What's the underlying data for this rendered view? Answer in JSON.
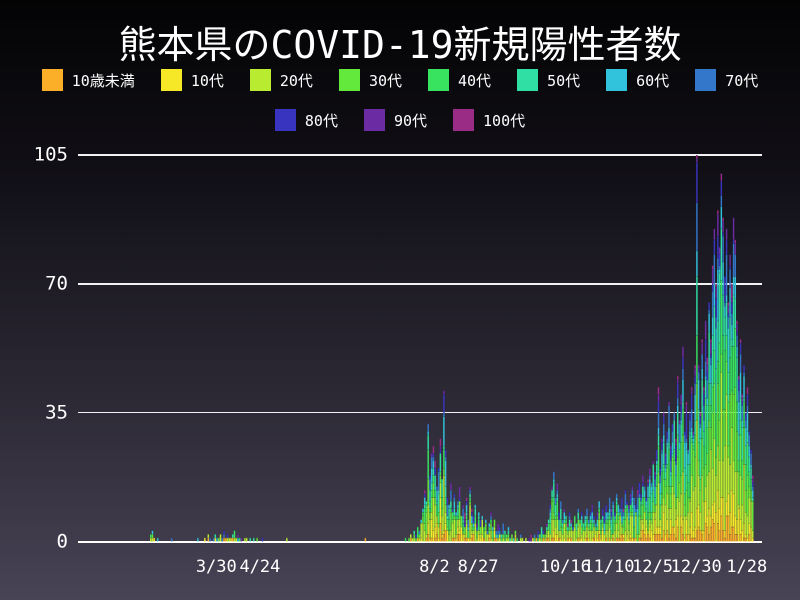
{
  "title": "熊本県のCOVID-19新規陽性者数",
  "chart_data": {
    "type": "bar",
    "stacked": true,
    "title": "熊本県のCOVID-19新規陽性者数",
    "xlabel": "",
    "ylabel": "",
    "ylim": [
      0,
      105
    ],
    "yticks": [
      0,
      35,
      70,
      105
    ],
    "grid": "horizontal",
    "legend_position": "top",
    "start_date": "2/21",
    "x_ticks": [
      {
        "label": "3/30",
        "day": 38
      },
      {
        "label": "4/24",
        "day": 63
      },
      {
        "label": "8/2",
        "day": 163
      },
      {
        "label": "8/27",
        "day": 188
      },
      {
        "label": "10/16",
        "day": 238
      },
      {
        "label": "11/10",
        "day": 263
      },
      {
        "label": "12/5",
        "day": 288
      },
      {
        "label": "12/30",
        "day": 313
      },
      {
        "label": "1/28",
        "day": 342
      }
    ],
    "age_groups": [
      {
        "label": "10歳未満",
        "color": "#FBAE28",
        "share": 0.05
      },
      {
        "label": "10代",
        "color": "#F6E827",
        "share": 0.08
      },
      {
        "label": "20代",
        "color": "#B9EC31",
        "share": 0.22
      },
      {
        "label": "30代",
        "color": "#63E93B",
        "share": 0.15
      },
      {
        "label": "40代",
        "color": "#37E35F",
        "share": 0.13
      },
      {
        "label": "50代",
        "color": "#30DFA3",
        "share": 0.12
      },
      {
        "label": "60代",
        "color": "#31C2DC",
        "share": 0.09
      },
      {
        "label": "70代",
        "color": "#3377CA",
        "share": 0.07
      },
      {
        "label": "80代",
        "color": "#3834BF",
        "share": 0.05
      },
      {
        "label": "90代",
        "color": "#6B2BA2",
        "share": 0.03
      },
      {
        "label": "100代",
        "color": "#9A2C86",
        "share": 0.01
      }
    ],
    "daily_totals": [
      2,
      3,
      1,
      0,
      1,
      0,
      0,
      0,
      0,
      0,
      0,
      0,
      1,
      0,
      0,
      0,
      0,
      0,
      0,
      0,
      0,
      0,
      0,
      0,
      0,
      0,
      0,
      1,
      0,
      0,
      0,
      1,
      0,
      2,
      1,
      0,
      1,
      2,
      1,
      1,
      2,
      1,
      3,
      1,
      2,
      1,
      1,
      2,
      3,
      1,
      2,
      1,
      1,
      0,
      1,
      1,
      0,
      1,
      0,
      1,
      0,
      1,
      0,
      0,
      1,
      0,
      0,
      0,
      0,
      0,
      0,
      0,
      0,
      0,
      0,
      0,
      0,
      0,
      1,
      0,
      0,
      0,
      0,
      0,
      0,
      0,
      0,
      0,
      0,
      0,
      0,
      0,
      0,
      0,
      0,
      0,
      0,
      0,
      0,
      0,
      0,
      0,
      0,
      0,
      0,
      0,
      0,
      0,
      0,
      0,
      0,
      0,
      0,
      0,
      0,
      0,
      0,
      0,
      0,
      0,
      0,
      0,
      0,
      1,
      0,
      0,
      0,
      0,
      0,
      0,
      0,
      0,
      0,
      0,
      0,
      0,
      0,
      0,
      0,
      0,
      0,
      0,
      0,
      0,
      0,
      0,
      1,
      0,
      1,
      2,
      1,
      3,
      2,
      4,
      3,
      6,
      9,
      14,
      11,
      32,
      18,
      24,
      26,
      22,
      15,
      20,
      28,
      17,
      41,
      25,
      12,
      10,
      16,
      9,
      13,
      8,
      11,
      15,
      7,
      10,
      8,
      12,
      6,
      15,
      9,
      7,
      10,
      5,
      8,
      6,
      7,
      4,
      6,
      3,
      5,
      8,
      4,
      6,
      3,
      5,
      4,
      2,
      5,
      3,
      2,
      4,
      1,
      2,
      1,
      3,
      1,
      0,
      2,
      1,
      0,
      1,
      0,
      1,
      2,
      1,
      2,
      1,
      3,
      2,
      4,
      3,
      2,
      5,
      6,
      10,
      15,
      19,
      12,
      16,
      8,
      11,
      6,
      9,
      7,
      5,
      8,
      6,
      4,
      7,
      5,
      9,
      6,
      8,
      5,
      7,
      9,
      6,
      8,
      10,
      7,
      5,
      8,
      11,
      6,
      9,
      7,
      10,
      8,
      12,
      9,
      11,
      8,
      13,
      10,
      9,
      12,
      9,
      14,
      11,
      10,
      13,
      15,
      12,
      10,
      14,
      16,
      13,
      18,
      15,
      12,
      17,
      20,
      16,
      22,
      19,
      25,
      42,
      20,
      28,
      35,
      24,
      30,
      38,
      26,
      32,
      35,
      28,
      45,
      33,
      40,
      53,
      30,
      38,
      25,
      35,
      42,
      30,
      48,
      105,
      48,
      35,
      55,
      42,
      60,
      50,
      65,
      55,
      75,
      85,
      70,
      90,
      80,
      100,
      88,
      72,
      85,
      65,
      78,
      70,
      88,
      82,
      60,
      45,
      55,
      40,
      48,
      35,
      42,
      30,
      25,
      18
    ]
  }
}
